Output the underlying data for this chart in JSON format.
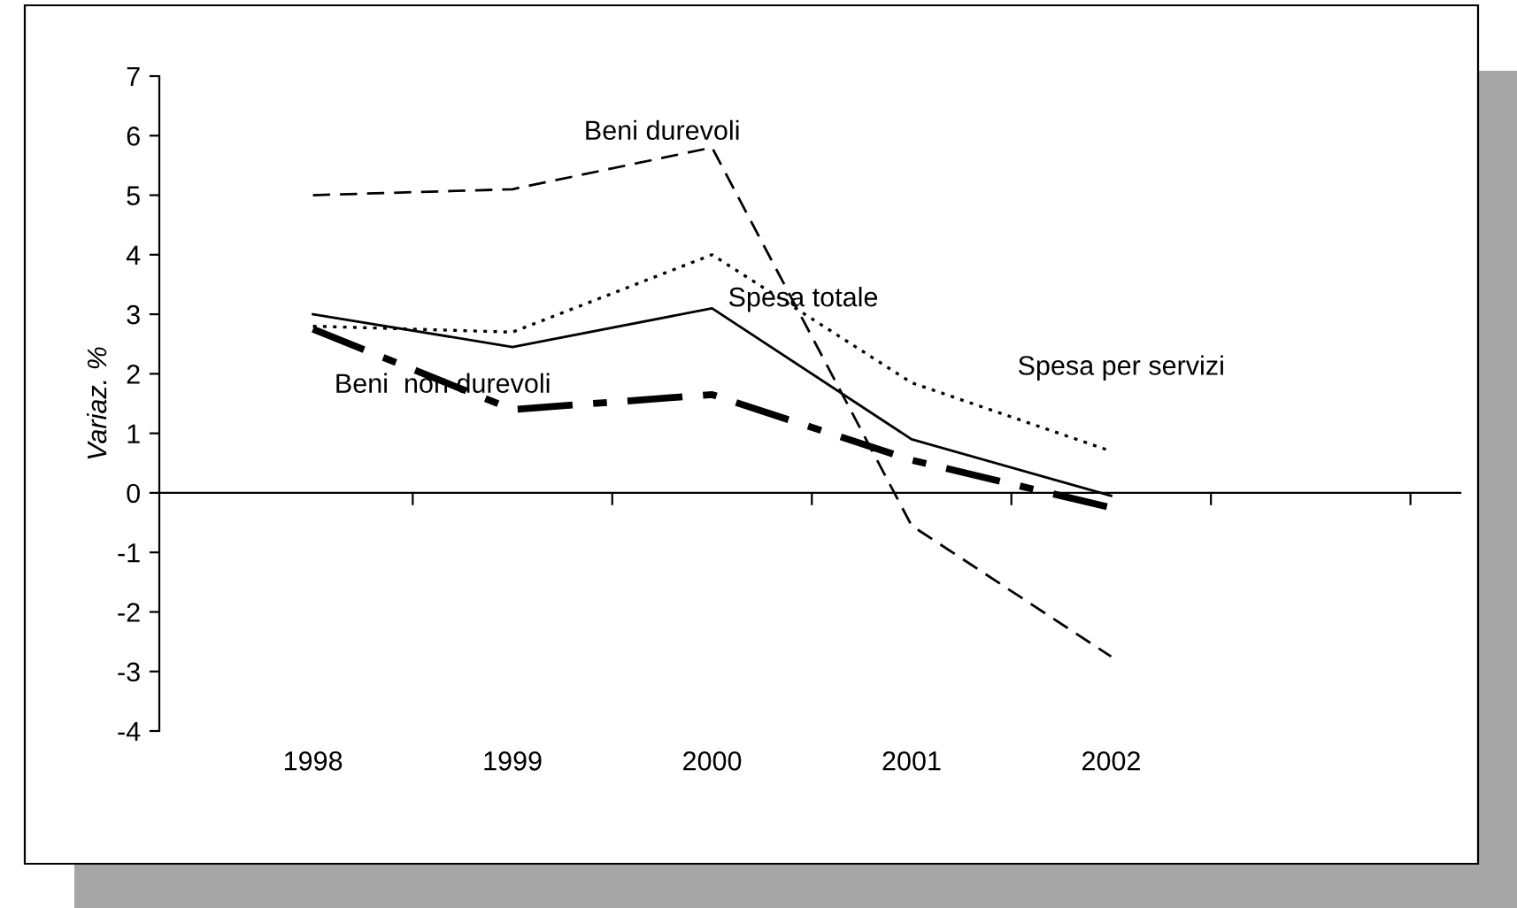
{
  "chart_data": {
    "type": "line",
    "ylabel": "Variaz. %",
    "categories": [
      "1998",
      "1999",
      "2000",
      "2001",
      "2002"
    ],
    "series": [
      {
        "name": "Beni durevoli",
        "color": "#000000",
        "line_style": "dashed",
        "values": [
          5.0,
          5.1,
          5.8,
          -0.55,
          -2.75
        ]
      },
      {
        "name": "Spesa totale",
        "color": "#000000",
        "line_style": "solid",
        "values": [
          3.0,
          2.45,
          3.1,
          0.9,
          -0.05
        ]
      },
      {
        "name": "Spesa per servizi",
        "color": "#000000",
        "line_style": "dotted",
        "values": [
          2.8,
          2.7,
          4.0,
          1.85,
          0.7
        ]
      },
      {
        "name": "Beni  non durevoli",
        "color": "#000000",
        "line_style": "dashdot",
        "values": [
          2.75,
          1.4,
          1.65,
          0.55,
          -0.25
        ]
      }
    ],
    "ylim": [
      -4,
      7
    ],
    "yticks": [
      -4,
      -3,
      -2,
      -1,
      0,
      1,
      2,
      3,
      4,
      5,
      6,
      7
    ],
    "legend": false,
    "marker": "none"
  }
}
